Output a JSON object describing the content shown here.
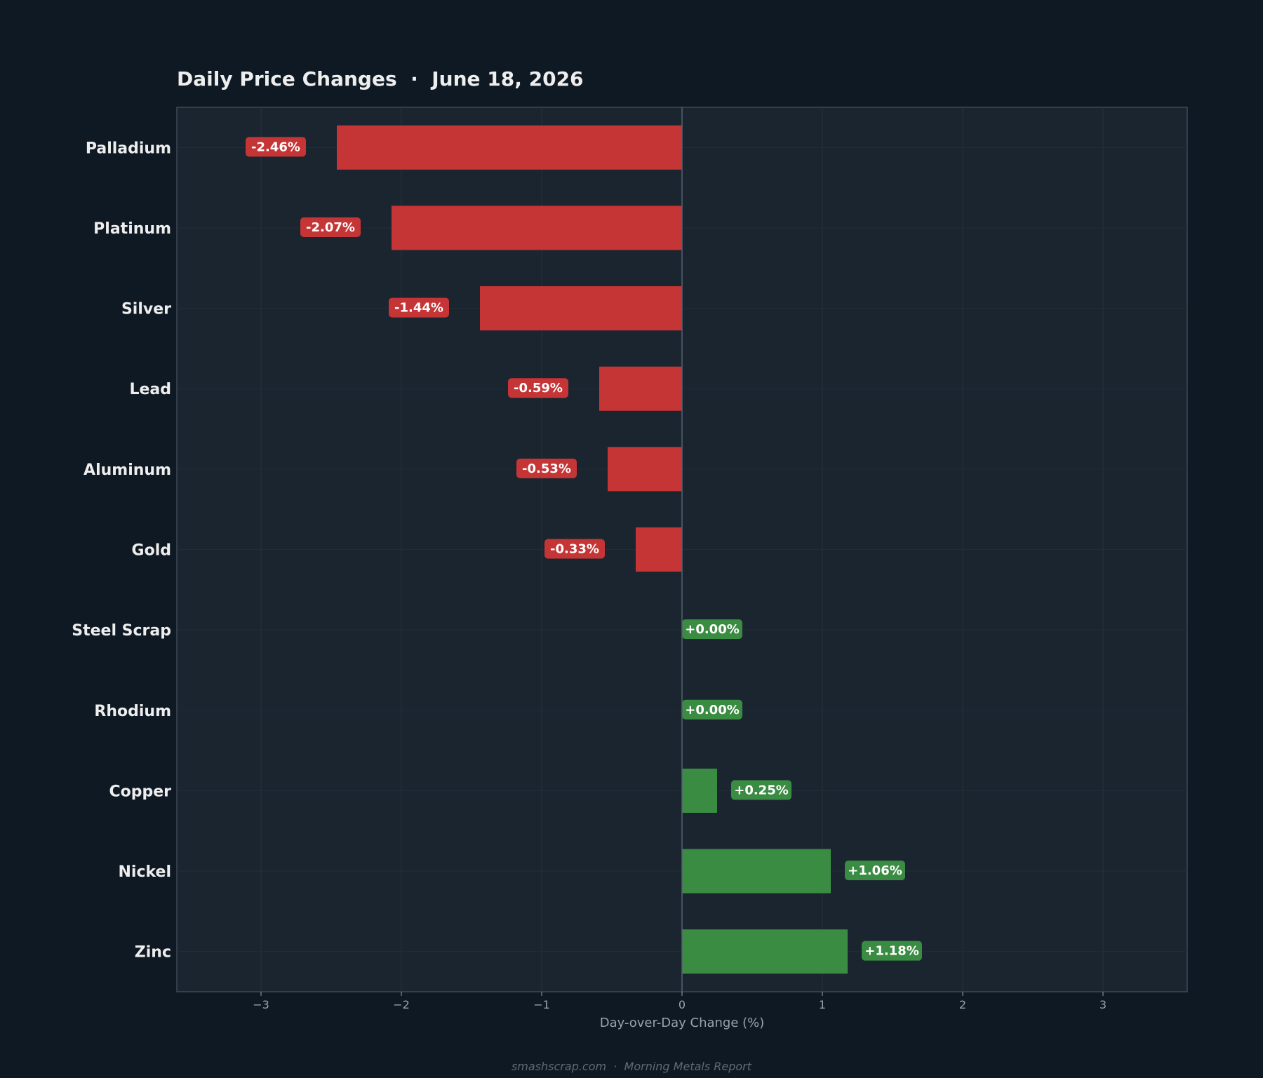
{
  "colors": {
    "background": "#0f1923",
    "plot_background": "#1b2530",
    "negative": "#c53535",
    "positive": "#3b8c43",
    "text": "#eeeeee",
    "muted_text": "#9aa3ad",
    "footer_text": "#5f6973"
  },
  "chart_data": {
    "type": "bar",
    "orientation": "horizontal",
    "title": "Daily Price Changes  ·  June 18, 2026",
    "xlabel": "Day-over-Day Change (%)",
    "ylabel": "",
    "xlim": [
      -3.6,
      3.6
    ],
    "xticks": [
      -3,
      -2,
      -1,
      0,
      1,
      2,
      3
    ],
    "xtick_labels": [
      "−3",
      "−2",
      "−1",
      "0",
      "1",
      "2",
      "3"
    ],
    "grid": true,
    "categories": [
      "Palladium",
      "Platinum",
      "Silver",
      "Lead",
      "Aluminum",
      "Gold",
      "Steel Scrap",
      "Rhodium",
      "Copper",
      "Nickel",
      "Zinc"
    ],
    "values": [
      -2.46,
      -2.07,
      -1.44,
      -0.59,
      -0.53,
      -0.33,
      0.0,
      0.0,
      0.25,
      1.06,
      1.18
    ],
    "labels": [
      "-2.46%",
      "-2.07%",
      "-1.44%",
      "-0.59%",
      "-0.53%",
      "-0.33%",
      "+0.00%",
      "+0.00%",
      "+0.25%",
      "+1.06%",
      "+1.18%"
    ]
  },
  "footer": "smashscrap.com  ·  Morning Metals Report"
}
